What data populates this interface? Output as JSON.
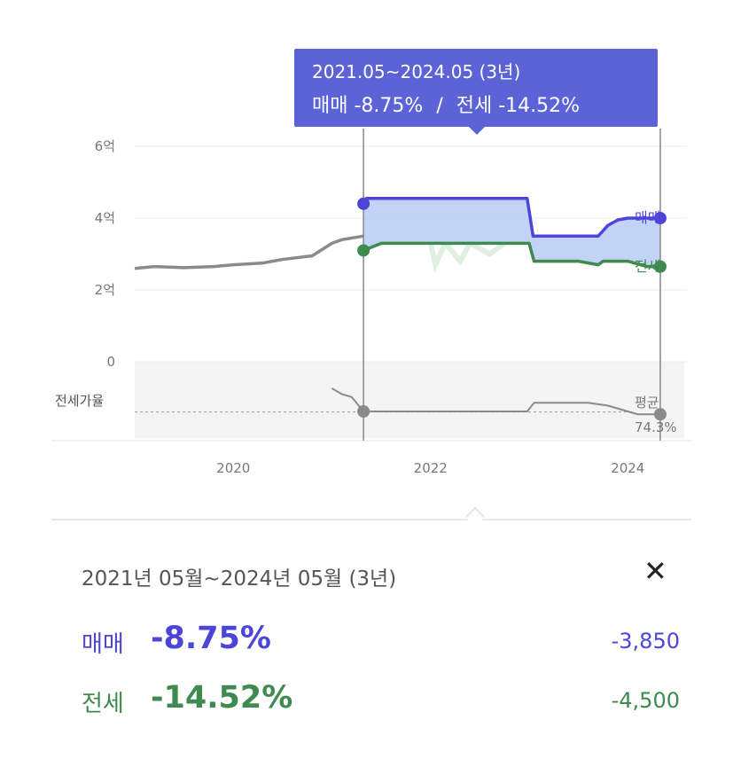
{
  "tooltip": {
    "period": "2021.05~2024.05 (3년)",
    "summary_sale_label": "매매",
    "summary_sale_pct": "-8.75%",
    "summary_divider": "/",
    "summary_jeonse_label": "전세",
    "summary_jeonse_pct": "-14.52%"
  },
  "panel": {
    "period": "2021년 05월~2024년 05월 (3년)",
    "close_icon": "✕",
    "rows": [
      {
        "label": "매매",
        "pct": "-8.75%",
        "amount": "-3,850"
      },
      {
        "label": "전세",
        "pct": "-14.52%",
        "amount": "-4,500"
      }
    ]
  },
  "colors": {
    "sale": "#4d45d8",
    "jeonse": "#3e8a4f",
    "history": "#8a8a8a",
    "tooltip_bg": "#5b63d6"
  },
  "chart_data": {
    "type": "line",
    "x_tick_labels": [
      "2020",
      "2022",
      "2024"
    ],
    "y_tick_labels": [
      "6억",
      "4억",
      "2억",
      "0"
    ],
    "ylim": [
      0,
      6
    ],
    "xlim": [
      2019.0,
      2024.6
    ],
    "grid": true,
    "series": [
      {
        "name": "매매",
        "x": [
          2021.32,
          2021.35,
          2021.42,
          2022.0,
          2022.5,
          2022.98,
          2023.04,
          2023.5,
          2023.7,
          2023.8,
          2023.9,
          2024.0,
          2024.2,
          2024.33
        ],
        "values": [
          4.4,
          4.55,
          4.55,
          4.55,
          4.55,
          4.55,
          3.5,
          3.5,
          3.5,
          3.8,
          3.95,
          4.0,
          4.0,
          4.0
        ]
      },
      {
        "name": "전세",
        "x": [
          2021.32,
          2021.5,
          2022.0,
          2022.5,
          2023.0,
          2023.05,
          2023.5,
          2023.7,
          2023.75,
          2024.0,
          2024.2,
          2024.33
        ],
        "values": [
          3.1,
          3.3,
          3.3,
          3.3,
          3.3,
          2.8,
          2.8,
          2.7,
          2.8,
          2.8,
          2.65,
          2.65
        ]
      },
      {
        "x": [
          2019.0,
          2019.2,
          2019.5,
          2019.8,
          2020.0,
          2020.3,
          2020.5,
          2020.8,
          2021.0,
          2021.1,
          2021.32
        ],
        "values": [
          2.6,
          2.65,
          2.62,
          2.65,
          2.7,
          2.75,
          2.85,
          2.95,
          3.3,
          3.4,
          3.5
        ]
      },
      {
        "x": [
          2021.0,
          2021.1,
          2021.2,
          2021.32,
          2021.5,
          2022.0,
          2022.5,
          2022.98,
          2023.05,
          2023.3,
          2023.6,
          2023.8,
          2024.0,
          2024.1,
          2024.33
        ],
        "values": [
          86,
          84,
          83,
          78,
          78,
          78,
          78,
          78,
          81,
          81,
          81,
          80,
          78,
          77,
          77
        ]
      }
    ],
    "jeonse_ratio_average_label": "평균",
    "jeonse_ratio_average_value": "74.3%",
    "jeonse_ratio_label": "전세가율",
    "line_end_labels": [
      "매매",
      "전세"
    ]
  }
}
